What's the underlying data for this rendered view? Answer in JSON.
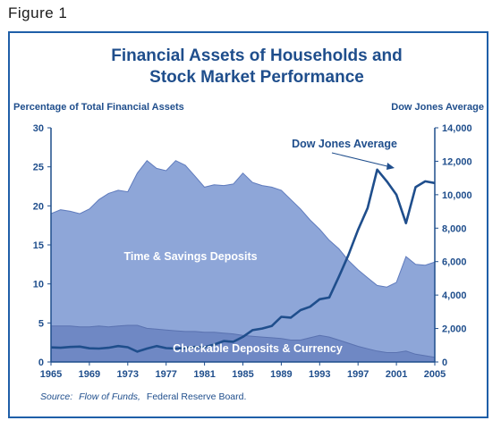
{
  "figure_label": "Figure 1",
  "chart_data": {
    "type": "area",
    "title": "Financial Assets of Households and Stock Market Performance",
    "title_lines": [
      "Financial Assets of Households and",
      "Stock Market Performance"
    ],
    "y_left_label": "Percentage of Total Financial Assets",
    "y_right_label": "Dow Jones Average",
    "y_left_lim": [
      0,
      30
    ],
    "y_right_lim": [
      0,
      14000
    ],
    "y_left_ticks": [
      0,
      5,
      10,
      15,
      20,
      25,
      30
    ],
    "y_right_ticks": [
      0,
      2000,
      4000,
      6000,
      8000,
      10000,
      12000,
      14000
    ],
    "y_right_tick_labels": [
      "0",
      "2,000",
      "4,000",
      "6,000",
      "8,000",
      "10,000",
      "12,000",
      "14,000"
    ],
    "x_lim": [
      1965,
      2005
    ],
    "x_ticks": [
      1965,
      1969,
      1973,
      1977,
      1981,
      1985,
      1989,
      1993,
      1997,
      2001,
      2005
    ],
    "years": [
      1965,
      1966,
      1967,
      1968,
      1969,
      1970,
      1971,
      1972,
      1973,
      1974,
      1975,
      1976,
      1977,
      1978,
      1979,
      1980,
      1981,
      1982,
      1983,
      1984,
      1985,
      1986,
      1987,
      1988,
      1989,
      1990,
      1991,
      1992,
      1993,
      1994,
      1995,
      1996,
      1997,
      1998,
      1999,
      2000,
      2001,
      2002,
      2003,
      2004,
      2005
    ],
    "series": [
      {
        "name": "Time & Savings Deposits",
        "axis": "left",
        "color": "#8ea6d8",
        "values": [
          19.0,
          19.5,
          19.3,
          19.0,
          19.6,
          20.8,
          21.6,
          22.0,
          21.8,
          24.2,
          25.8,
          24.8,
          24.5,
          25.8,
          25.2,
          23.8,
          22.4,
          22.7,
          22.6,
          22.8,
          24.2,
          23.0,
          22.6,
          22.4,
          22.0,
          20.8,
          19.6,
          18.2,
          17.0,
          15.6,
          14.5,
          13.0,
          11.8,
          10.8,
          9.8,
          9.6,
          10.2,
          13.5,
          12.5,
          12.4,
          12.8
        ]
      },
      {
        "name": "Checkable Deposits & Currency",
        "axis": "left",
        "color": "#6f88c4",
        "values": [
          4.6,
          4.6,
          4.6,
          4.5,
          4.5,
          4.6,
          4.5,
          4.6,
          4.7,
          4.7,
          4.3,
          4.2,
          4.1,
          4.0,
          3.9,
          3.9,
          3.8,
          3.8,
          3.7,
          3.6,
          3.4,
          3.3,
          3.2,
          3.1,
          3.0,
          2.8,
          2.8,
          3.1,
          3.4,
          3.2,
          2.8,
          2.4,
          2.0,
          1.7,
          1.4,
          1.2,
          1.2,
          1.4,
          1.0,
          0.8,
          0.6
        ]
      },
      {
        "name": "Dow Jones Average",
        "axis": "right",
        "color": "#1f4e8c",
        "values": [
          870,
          850,
          900,
          920,
          820,
          800,
          850,
          950,
          880,
          620,
          800,
          950,
          830,
          800,
          840,
          900,
          880,
          1040,
          1250,
          1210,
          1500,
          1900,
          2000,
          2150,
          2700,
          2650,
          3100,
          3300,
          3750,
          3850,
          5100,
          6400,
          7900,
          9200,
          11500,
          10800,
          10000,
          8300,
          10450,
          10800,
          10700
        ]
      }
    ],
    "annotations": {
      "area_label_time_savings": "Time & Savings Deposits",
      "area_label_checkable": "Checkable Deposits & Currency",
      "dow_label": "Dow Jones Average"
    },
    "grid": false,
    "source_prefix": "Source:",
    "source_italic": "Flow of Funds,",
    "source_rest": "Federal Reserve Board."
  }
}
